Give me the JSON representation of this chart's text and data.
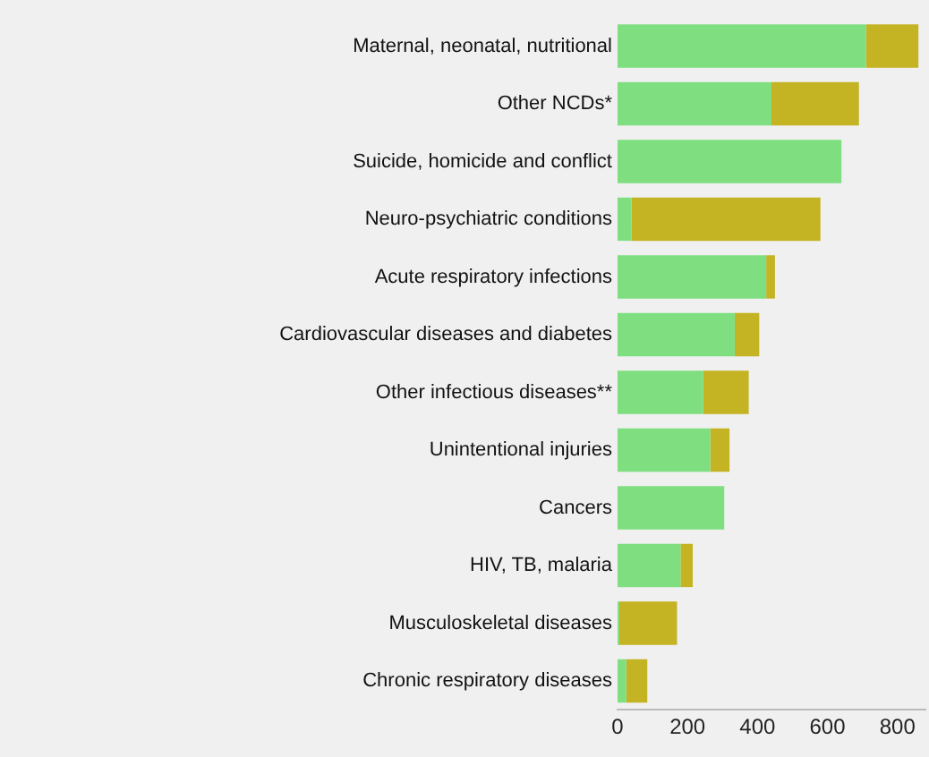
{
  "chart_data": {
    "type": "bar",
    "orientation": "horizontal",
    "stacked": true,
    "categories": [
      "Maternal, neonatal, nutritional",
      "Other NCDs*",
      "Suicide, homicide and conflict",
      "Neuro-psychiatric conditions",
      "Acute respiratory infections",
      "Cardiovascular diseases and diabetes",
      "Other infectious diseases**",
      "Unintentional injuries",
      "Cancers",
      "HIV, TB, malaria",
      "Musculoskeletal diseases",
      "Chronic respiratory diseases"
    ],
    "series": [
      {
        "color": "#7fdf80",
        "values": [
          710,
          440,
          640,
          40,
          425,
          335,
          245,
          265,
          305,
          180,
          5,
          25
        ]
      },
      {
        "color": "#c4b322",
        "values": [
          150,
          250,
          0,
          540,
          25,
          70,
          130,
          55,
          0,
          35,
          165,
          60
        ]
      }
    ],
    "xlim": [
      0,
      880
    ],
    "xticks": [
      0,
      200,
      400,
      600,
      800
    ],
    "grid": false,
    "legend": false
  }
}
